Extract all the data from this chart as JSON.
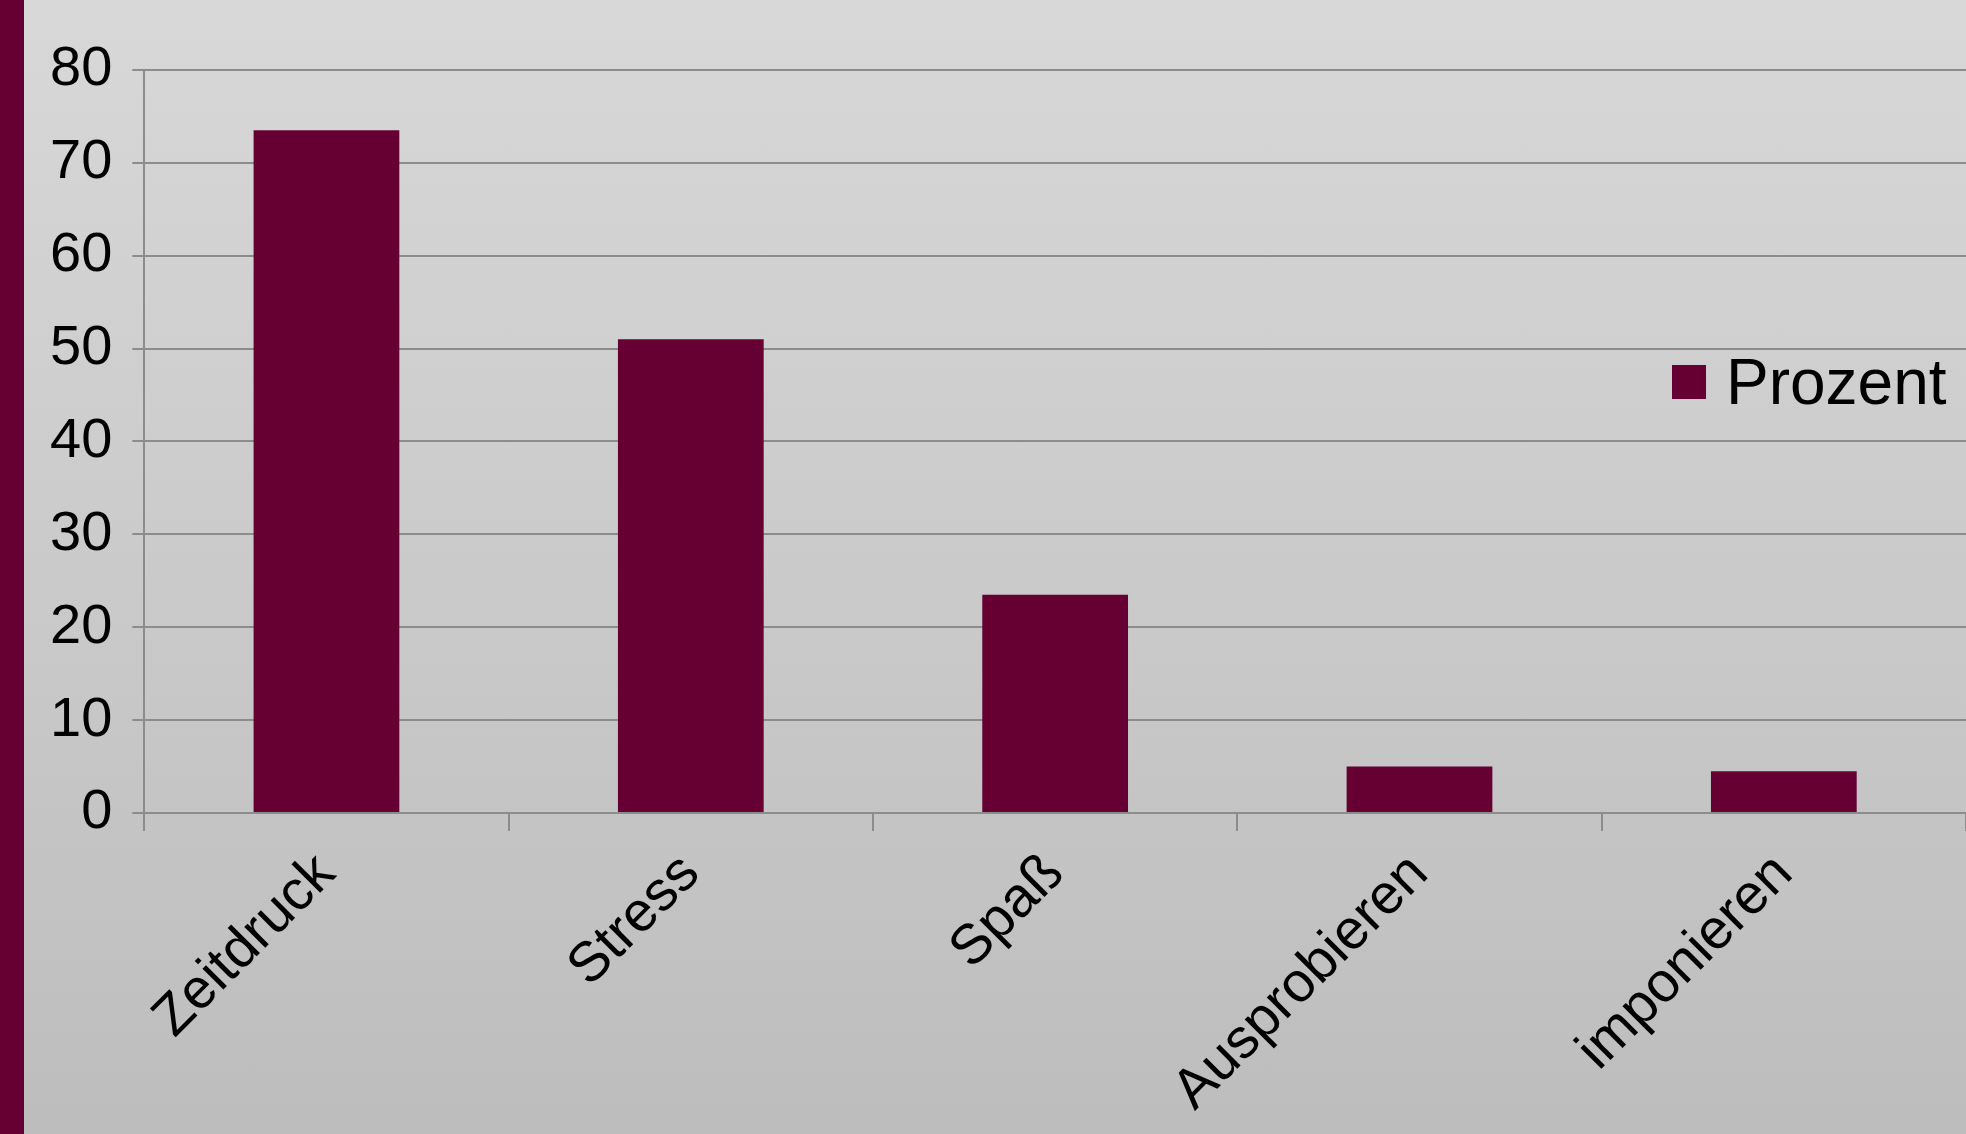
{
  "chart_data": {
    "type": "bar",
    "categories": [
      "Zeitdruck",
      "Stress",
      "Spaß",
      "Ausprobieren",
      "imponieren"
    ],
    "series": [
      {
        "name": "Prozent",
        "color": "#660033",
        "values": [
          73.5,
          51,
          23.5,
          5,
          4.5
        ]
      }
    ],
    "ylim": [
      0,
      80
    ],
    "yticks": [
      0,
      10,
      20,
      30,
      40,
      50,
      60,
      70,
      80
    ],
    "grid": "y",
    "legend": "right"
  }
}
